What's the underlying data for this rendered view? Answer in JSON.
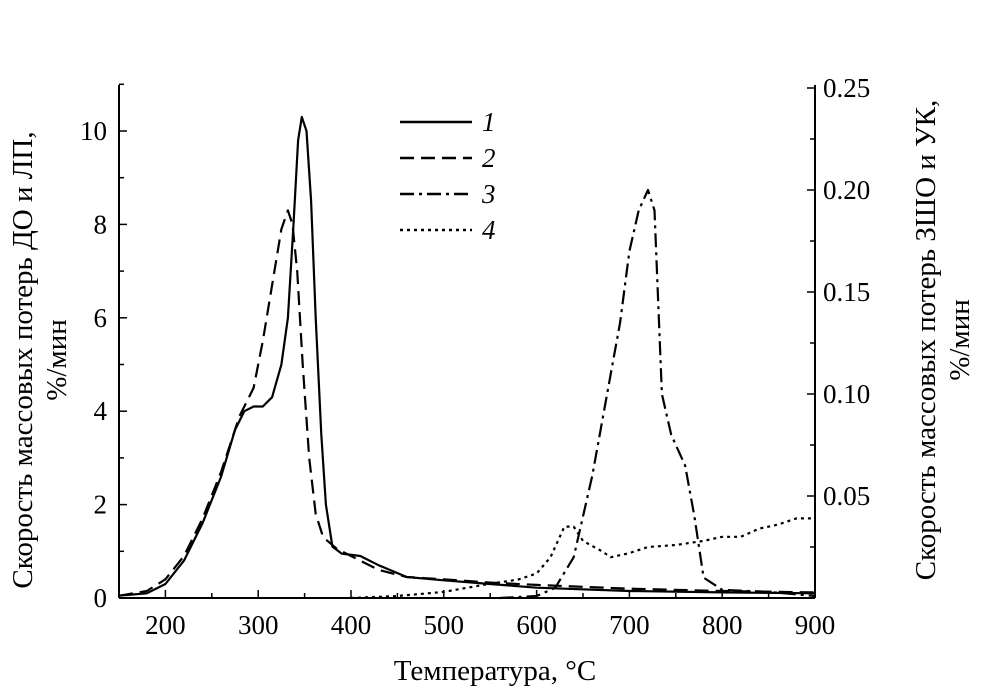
{
  "chart_data": {
    "type": "line",
    "xlabel": "Температура, °C",
    "ylabel_left_line1": "Скорость массовых потерь ДО и ЛП,",
    "ylabel_left_line2": "%/мин",
    "ylabel_right_line1": "Скорость массовых потерь ЗШО и УК,",
    "ylabel_right_line2": "%/мин",
    "xlim": [
      150,
      900
    ],
    "ylim_left": [
      0,
      11
    ],
    "ylim_right": [
      0,
      0.25
    ],
    "x_ticks": [
      "200",
      "300",
      "400",
      "500",
      "600",
      "700",
      "800",
      "900"
    ],
    "y_left_ticks": [
      "0",
      "2",
      "4",
      "6",
      "8",
      "10"
    ],
    "y_right_ticks": [
      "0.05",
      "0.10",
      "0.15",
      "0.20",
      "0.25"
    ],
    "legend_position": "top-center",
    "series": [
      {
        "name": "1",
        "axis": "left",
        "style": "solid",
        "points": [
          [
            150,
            0.05
          ],
          [
            180,
            0.1
          ],
          [
            200,
            0.3
          ],
          [
            220,
            0.8
          ],
          [
            240,
            1.6
          ],
          [
            260,
            2.6
          ],
          [
            275,
            3.6
          ],
          [
            285,
            4.0
          ],
          [
            295,
            4.1
          ],
          [
            305,
            4.1
          ],
          [
            315,
            4.3
          ],
          [
            325,
            5.0
          ],
          [
            332,
            6.0
          ],
          [
            338,
            8.0
          ],
          [
            343,
            9.8
          ],
          [
            347,
            10.3
          ],
          [
            352,
            10.0
          ],
          [
            357,
            8.5
          ],
          [
            362,
            6.0
          ],
          [
            368,
            3.5
          ],
          [
            373,
            2.0
          ],
          [
            380,
            1.1
          ],
          [
            390,
            0.95
          ],
          [
            410,
            0.9
          ],
          [
            430,
            0.7
          ],
          [
            460,
            0.45
          ],
          [
            500,
            0.38
          ],
          [
            550,
            0.3
          ],
          [
            600,
            0.22
          ],
          [
            700,
            0.15
          ],
          [
            800,
            0.12
          ],
          [
            900,
            0.1
          ]
        ]
      },
      {
        "name": "2",
        "axis": "left",
        "style": "dashed",
        "points": [
          [
            150,
            0.05
          ],
          [
            180,
            0.15
          ],
          [
            200,
            0.4
          ],
          [
            220,
            0.9
          ],
          [
            240,
            1.7
          ],
          [
            260,
            2.7
          ],
          [
            280,
            3.9
          ],
          [
            295,
            4.5
          ],
          [
            305,
            5.5
          ],
          [
            315,
            6.7
          ],
          [
            325,
            7.9
          ],
          [
            332,
            8.3
          ],
          [
            337,
            8.0
          ],
          [
            342,
            7.0
          ],
          [
            348,
            5.0
          ],
          [
            355,
            3.0
          ],
          [
            362,
            1.8
          ],
          [
            370,
            1.3
          ],
          [
            385,
            1.05
          ],
          [
            400,
            0.9
          ],
          [
            430,
            0.6
          ],
          [
            460,
            0.45
          ],
          [
            500,
            0.4
          ],
          [
            550,
            0.33
          ],
          [
            600,
            0.28
          ],
          [
            700,
            0.2
          ],
          [
            800,
            0.15
          ],
          [
            900,
            0.12
          ]
        ]
      },
      {
        "name": "3",
        "axis": "right",
        "style": "dash-dot",
        "points": [
          [
            560,
            0
          ],
          [
            600,
            0.001
          ],
          [
            620,
            0.005
          ],
          [
            640,
            0.02
          ],
          [
            660,
            0.06
          ],
          [
            680,
            0.11
          ],
          [
            690,
            0.135
          ],
          [
            700,
            0.17
          ],
          [
            710,
            0.19
          ],
          [
            720,
            0.2
          ],
          [
            727,
            0.19
          ],
          [
            735,
            0.1
          ],
          [
            745,
            0.08
          ],
          [
            760,
            0.065
          ],
          [
            770,
            0.04
          ],
          [
            780,
            0.01
          ],
          [
            800,
            0.004
          ],
          [
            850,
            0.003
          ],
          [
            900,
            0.001
          ]
        ]
      },
      {
        "name": "4",
        "axis": "right",
        "style": "dotted",
        "points": [
          [
            400,
            0
          ],
          [
            450,
            0.001
          ],
          [
            500,
            0.003
          ],
          [
            550,
            0.007
          ],
          [
            580,
            0.009
          ],
          [
            600,
            0.012
          ],
          [
            615,
            0.02
          ],
          [
            630,
            0.035
          ],
          [
            640,
            0.035
          ],
          [
            650,
            0.028
          ],
          [
            670,
            0.023
          ],
          [
            680,
            0.02
          ],
          [
            700,
            0.022
          ],
          [
            720,
            0.025
          ],
          [
            750,
            0.026
          ],
          [
            780,
            0.028
          ],
          [
            800,
            0.03
          ],
          [
            820,
            0.03
          ],
          [
            840,
            0.034
          ],
          [
            860,
            0.036
          ],
          [
            880,
            0.039
          ],
          [
            900,
            0.039
          ]
        ]
      }
    ]
  }
}
